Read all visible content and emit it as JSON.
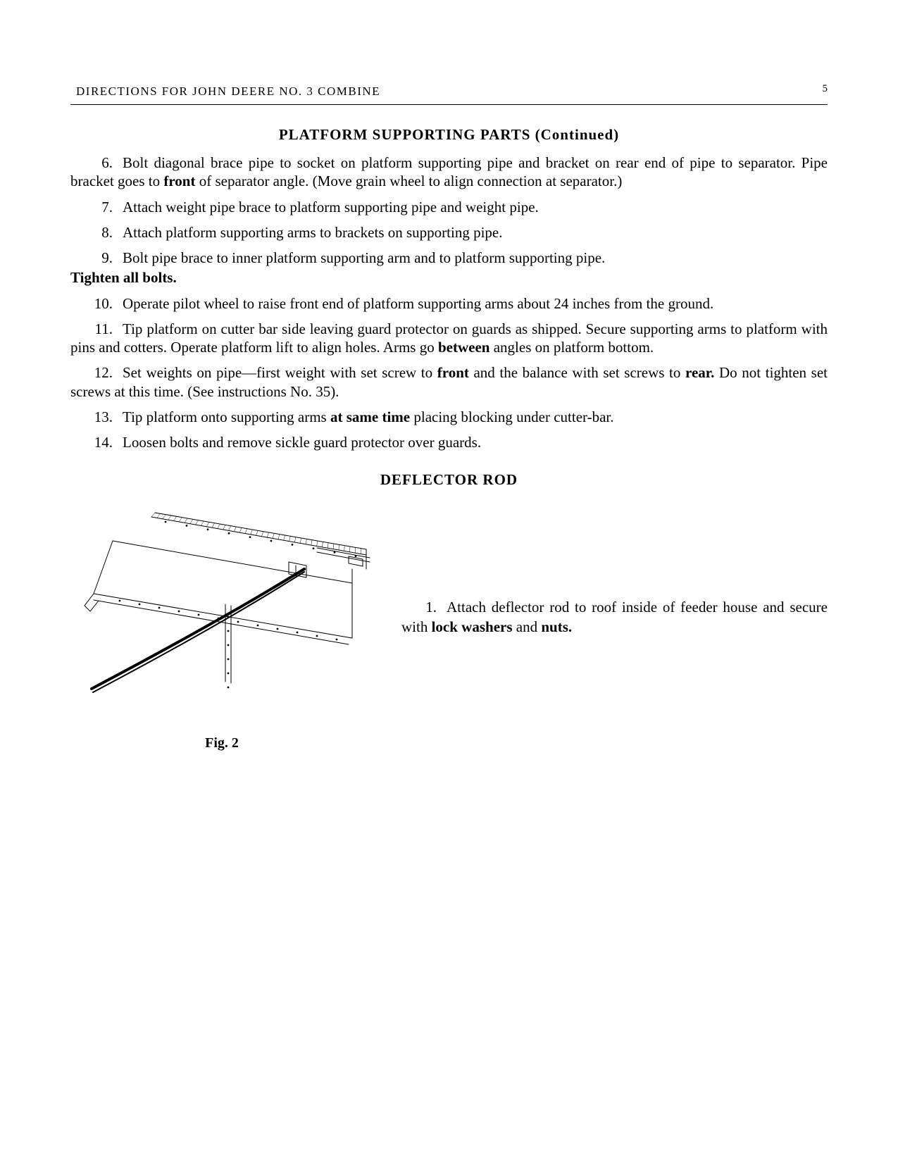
{
  "header": {
    "title": "DIRECTIONS FOR JOHN DEERE NO. 3 COMBINE",
    "page_number": "5"
  },
  "section1": {
    "title": "PLATFORM SUPPORTING PARTS (Continued)",
    "items": {
      "n6": "6.",
      "p6a": "Bolt diagonal brace pipe to socket on platform supporting pipe and bracket on rear end of pipe to separator.   Pipe bracket goes to ",
      "p6b": "front",
      "p6c": " of separator angle.   (Move grain wheel to align connection at separator.)",
      "n7": "7.",
      "p7": "Attach weight pipe brace to platform supporting pipe and weight pipe.",
      "n8": "8.",
      "p8": "Attach platform supporting arms to brackets on supporting pipe.",
      "n9": "9.",
      "p9a": "Bolt pipe brace to inner platform supporting arm and to platform supporting pipe.",
      "p9b": "Tighten all bolts.",
      "n10": "10.",
      "p10": "Operate pilot wheel to raise front end of platform supporting arms about 24 inches from the ground.",
      "n11": "11.",
      "p11a": "Tip platform on cutter bar side leaving guard protector on guards as shipped. Secure supporting arms to platform with pins and cotters.   Operate platform lift to align holes.   Arms go ",
      "p11b": "between",
      "p11c": " angles on platform bottom.",
      "n12": "12.",
      "p12a": "Set weights on pipe—first weight with set screw to ",
      "p12b": "front",
      "p12c": " and the balance with set screws to ",
      "p12d": "rear.",
      "p12e": "   Do not tighten set screws at this time.   (See instructions No. 35).",
      "n13": "13.",
      "p13a": "Tip platform onto supporting arms ",
      "p13b": "at same time",
      "p13c": " placing blocking under cutter-bar.",
      "n14": "14.",
      "p14": "Loosen bolts and remove sickle guard protector over guards."
    }
  },
  "section2": {
    "title": "DEFLECTOR ROD",
    "figure_caption": "Fig. 2",
    "n1": "1.",
    "p1a": "Attach deflector rod to roof inside of feeder house and secure with ",
    "p1b": "lock washers",
    "p1c": " and ",
    "p1d": "nuts."
  },
  "figure": {
    "stroke": "#000000",
    "thin": 1,
    "thick": 2,
    "dot_radius": 1.4
  }
}
